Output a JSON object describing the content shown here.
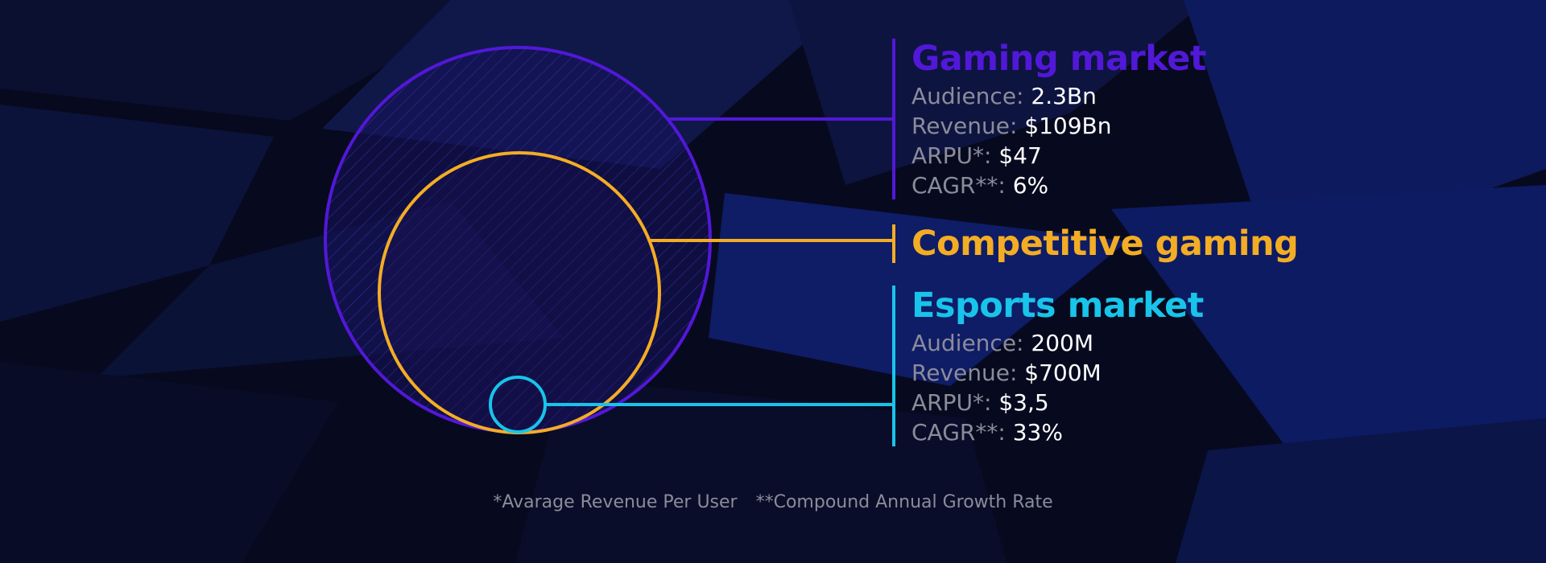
{
  "colors": {
    "background": "#070a1f",
    "gaming": "#5218d8",
    "competitive": "#f3ad25",
    "esports": "#18c4ea",
    "label_gray": "#8b8c99",
    "value_white": "#ffffff"
  },
  "markets": {
    "gaming": {
      "title": "Gaming market",
      "stats": [
        {
          "label": "Audience:",
          "value": "2.3Bn"
        },
        {
          "label": "Revenue:",
          "value": "$109Bn"
        },
        {
          "label": "ARPU*:",
          "value": "$47"
        },
        {
          "label": "CAGR**:",
          "value": "6%"
        }
      ]
    },
    "competitive": {
      "title": "Competitive gaming"
    },
    "esports": {
      "title": "Esports market",
      "stats": [
        {
          "label": "Audience:",
          "value": "200M"
        },
        {
          "label": "Revenue:",
          "value": "$700M"
        },
        {
          "label": "ARPU*:",
          "value": "$3,5"
        },
        {
          "label": "CAGR**:",
          "value": "33%"
        }
      ]
    }
  },
  "footnotes": {
    "arpu": "*Avarage Revenue Per User",
    "cagr": "**Compound Annual Growth Rate"
  }
}
